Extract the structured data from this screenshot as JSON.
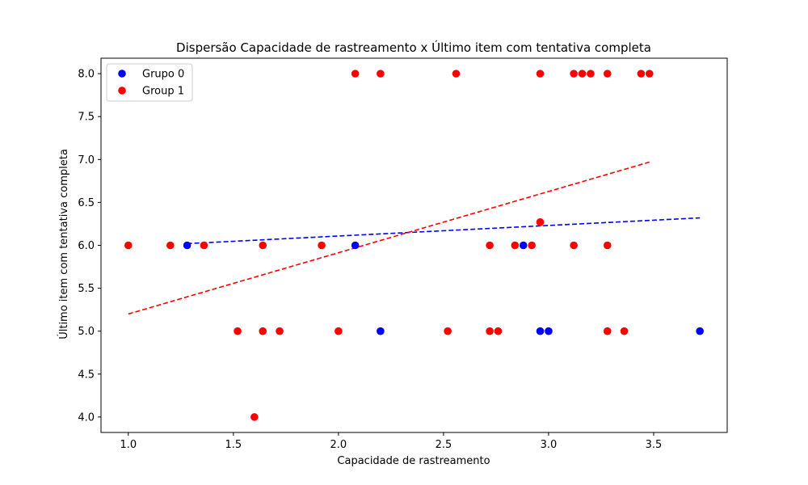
{
  "chart_data": {
    "type": "scatter",
    "title": "Dispersão Capacidade de rastreamento x Último item com tentativa completa",
    "xlabel": "Capacidade de rastreamento",
    "ylabel": "Último item com tentativa completa",
    "xlim": [
      0.87,
      3.85
    ],
    "ylim": [
      3.82,
      8.18
    ],
    "xticks": [
      1.0,
      1.5,
      2.0,
      2.5,
      3.0,
      3.5
    ],
    "xtick_labels": [
      "1.0",
      "1.5",
      "2.0",
      "2.5",
      "3.0",
      "3.5"
    ],
    "yticks": [
      4.0,
      4.5,
      5.0,
      5.5,
      6.0,
      6.5,
      7.0,
      7.5,
      8.0
    ],
    "ytick_labels": [
      "4.0",
      "4.5",
      "5.0",
      "5.5",
      "6.0",
      "6.5",
      "7.0",
      "7.5",
      "8.0"
    ],
    "grid": false,
    "legend_position": "top-left",
    "series": [
      {
        "name": "Grupo 0",
        "color": "#0000ff",
        "points": [
          [
            1.28,
            6.0
          ],
          [
            2.08,
            6.0
          ],
          [
            2.2,
            5.0
          ],
          [
            2.88,
            6.0
          ],
          [
            2.96,
            5.0
          ],
          [
            3.0,
            5.0
          ],
          [
            3.72,
            5.0
          ]
        ],
        "trendline": {
          "x": [
            1.28,
            3.72
          ],
          "y": [
            6.02,
            6.32
          ]
        }
      },
      {
        "name": "Group 1",
        "color": "#ff0000",
        "points": [
          [
            1.0,
            6.0
          ],
          [
            1.2,
            6.0
          ],
          [
            1.36,
            6.0
          ],
          [
            1.64,
            6.0
          ],
          [
            1.92,
            6.0
          ],
          [
            2.08,
            8.0
          ],
          [
            2.2,
            8.0
          ],
          [
            2.56,
            8.0
          ],
          [
            2.96,
            8.0
          ],
          [
            3.12,
            8.0
          ],
          [
            3.16,
            8.0
          ],
          [
            3.2,
            8.0
          ],
          [
            3.28,
            8.0
          ],
          [
            3.44,
            8.0
          ],
          [
            3.48,
            8.0
          ],
          [
            2.72,
            6.0
          ],
          [
            2.84,
            6.0
          ],
          [
            2.92,
            6.0
          ],
          [
            2.96,
            6.27
          ],
          [
            3.12,
            6.0
          ],
          [
            3.28,
            6.0
          ],
          [
            1.52,
            5.0
          ],
          [
            1.64,
            5.0
          ],
          [
            1.72,
            5.0
          ],
          [
            2.0,
            5.0
          ],
          [
            2.52,
            5.0
          ],
          [
            2.72,
            5.0
          ],
          [
            2.76,
            5.0
          ],
          [
            3.28,
            5.0
          ],
          [
            3.36,
            5.0
          ],
          [
            1.6,
            4.0
          ]
        ],
        "trendline": {
          "x": [
            1.0,
            3.48
          ],
          "y": [
            5.2,
            6.97
          ]
        }
      }
    ]
  }
}
